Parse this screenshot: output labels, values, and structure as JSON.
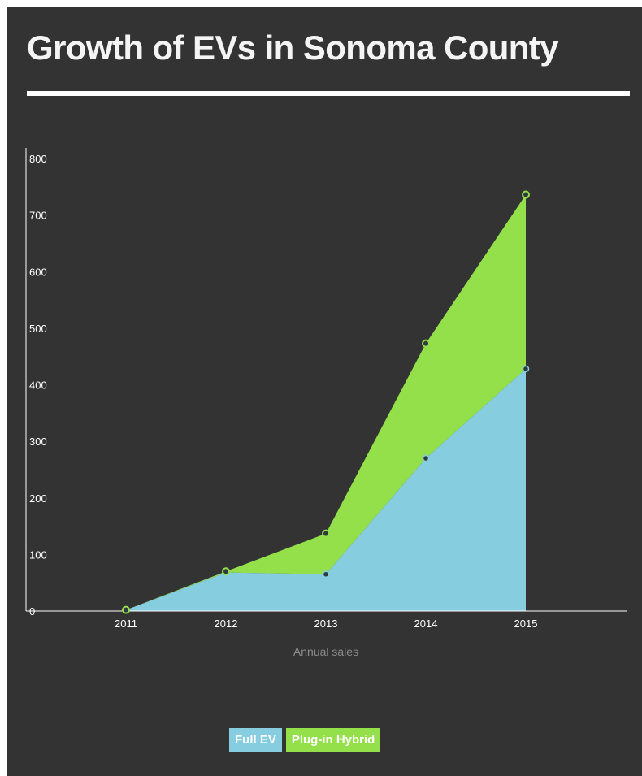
{
  "chart_data": {
    "type": "area",
    "stacked": true,
    "title": "Growth of EVs in Sonoma County",
    "xlabel": "Annual sales",
    "ylabel": "",
    "categories": [
      "2011",
      "2012",
      "2013",
      "2014",
      "2015"
    ],
    "ylim": [
      0,
      800
    ],
    "yticks": [
      0,
      100,
      200,
      300,
      400,
      500,
      600,
      700,
      800
    ],
    "series": [
      {
        "name": "Full EV",
        "values": [
          2,
          68,
          65,
          270,
          428
        ],
        "color": "#87cde0"
      },
      {
        "name": "Plug-in Hybrid",
        "values": [
          0,
          2,
          72,
          203,
          308
        ],
        "color": "#94e04a"
      }
    ],
    "legend_position": "bottom-center",
    "grid": false
  }
}
